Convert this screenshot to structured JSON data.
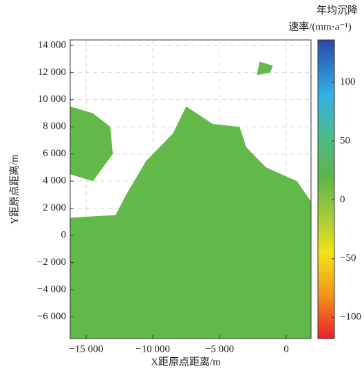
{
  "chart_data": {
    "type": "area-map",
    "xlabel": "X距原点距离/m",
    "ylabel": "Y距原点距离/m",
    "colorbar_title": [
      "年均沉降",
      "速率/(mm·a⁻¹)"
    ],
    "xlim": [
      -16200,
      1860
    ],
    "ylim": [
      -7600,
      14400
    ],
    "xticks": [
      {
        "value": -15000,
        "label": "−15 000"
      },
      {
        "value": -10000,
        "label": "−10 000"
      },
      {
        "value": -5000,
        "label": "−5 000"
      },
      0
    ],
    "yticks": [
      {
        "value": -6000,
        "label": "−6 000"
      },
      {
        "value": -4000,
        "label": "−4 000"
      },
      {
        "value": -2000,
        "label": "−2 000"
      },
      0,
      {
        "value": 2000,
        "label": "2 000"
      },
      {
        "value": 4000,
        "label": "4 000"
      },
      {
        "value": 6000,
        "label": "6 000"
      },
      {
        "value": 8000,
        "label": "8 000"
      },
      {
        "value": 10000,
        "label": "10 000"
      },
      {
        "value": 12000,
        "label": "12 000"
      },
      {
        "value": 14000,
        "label": "14 000"
      }
    ],
    "grid": true,
    "clim": [
      -118,
      136
    ],
    "cticks": [
      {
        "value": -100,
        "label": "−100"
      },
      {
        "value": -50,
        "label": "−50"
      },
      0,
      50,
      100
    ],
    "colormap": [
      {
        "value": -118,
        "color": "#e8202a"
      },
      {
        "value": -80,
        "color": "#f5961e"
      },
      {
        "value": -45,
        "color": "#f2e21a"
      },
      {
        "value": -15,
        "color": "#a6cc3a"
      },
      {
        "value": 20,
        "color": "#5ab54a"
      },
      {
        "value": 55,
        "color": "#4cbb8c"
      },
      {
        "value": 90,
        "color": "#2fb0e6"
      },
      {
        "value": 136,
        "color": "#2a48a8"
      }
    ],
    "regions": [
      {
        "color": "#63b84a",
        "x": [
          -16200,
          1860,
          1860,
          800,
          -1500,
          -3000,
          -3500,
          -5500,
          -7500,
          -8500,
          -10500,
          -12000,
          -12800,
          -16200
        ],
        "y": [
          -7600,
          -7600,
          2500,
          4000,
          5000,
          6500,
          8000,
          8200,
          9500,
          7500,
          5500,
          3000,
          1500,
          1300
        ]
      },
      {
        "color": "#63b84a",
        "x": [
          -16200,
          -14500,
          -13000,
          -13200,
          -14500,
          -16200
        ],
        "y": [
          4500,
          4000,
          6000,
          8000,
          9000,
          9500
        ]
      },
      {
        "color": "#63b84a",
        "x": [
          -2000,
          -1000,
          -1200,
          -2200
        ],
        "y": [
          12800,
          12500,
          12000,
          11800
        ]
      }
    ]
  }
}
